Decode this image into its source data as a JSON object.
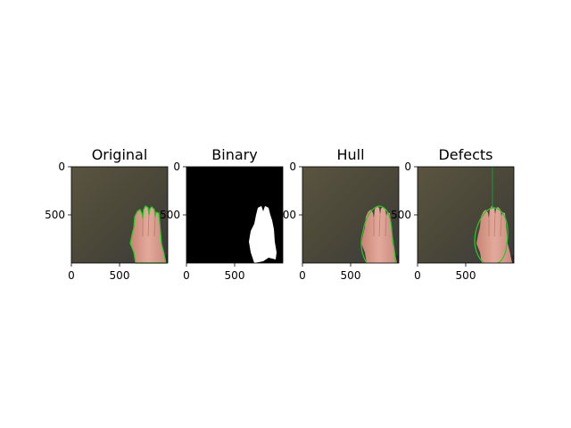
{
  "panels": [
    {
      "title": "Original",
      "variant": "original"
    },
    {
      "title": "Binary",
      "variant": "binary"
    },
    {
      "title": "Hull",
      "variant": "hull"
    },
    {
      "title": "Defects",
      "variant": "defects"
    }
  ],
  "axes": {
    "x_ticks": [
      0,
      500
    ],
    "y_ticks": [
      0,
      500
    ],
    "x_range": [
      0,
      1000
    ],
    "y_range": [
      0,
      1000
    ]
  },
  "colors": {
    "background": "#4a4739",
    "skin": "#d99a8a",
    "contour": "#22cc22",
    "mask": "#ffffff",
    "mask_background": "#000000"
  }
}
